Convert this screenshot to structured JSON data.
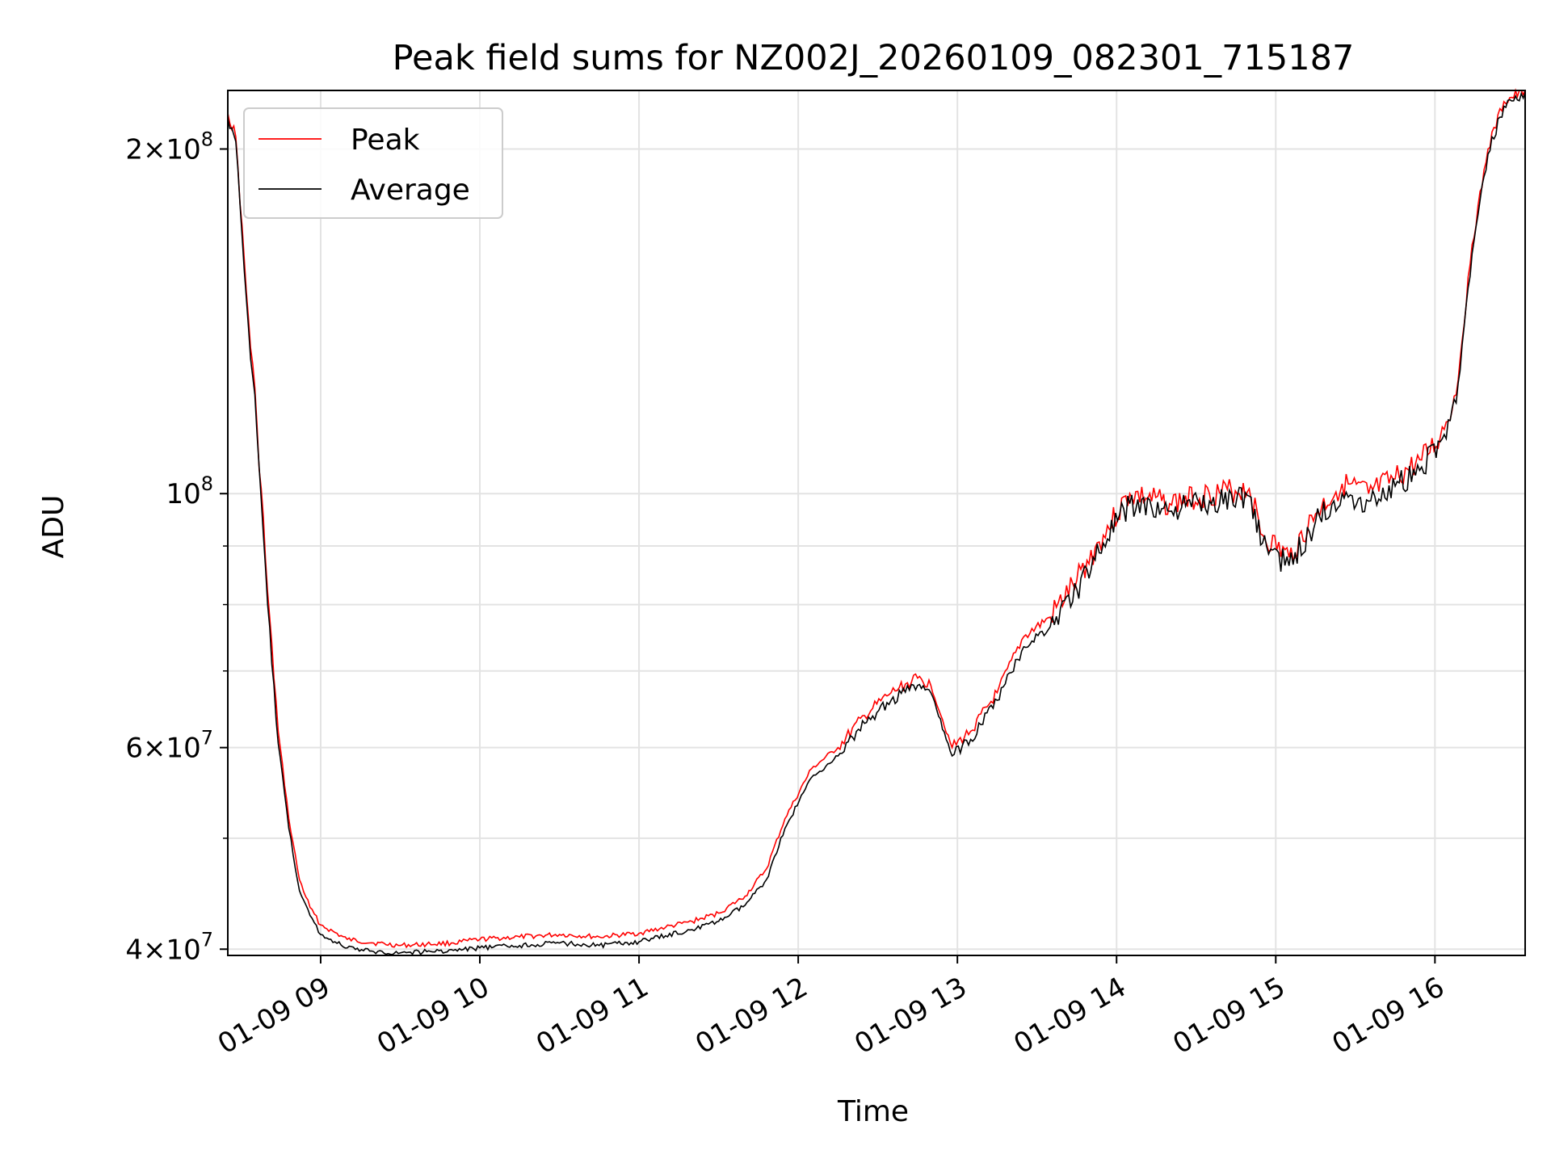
{
  "chart_data": {
    "type": "line",
    "title": "Peak field sums for NZ002J_20260109_082301_715187",
    "xlabel": "Time",
    "ylabel": "ADU",
    "yscale": "log",
    "ylim": [
      39500000,
      225000000
    ],
    "xlim": [
      "01-09 08:25",
      "01-09 16:34"
    ],
    "grid": true,
    "legend_position": "top-left",
    "x_ticks": [
      {
        "t": "01-09 09:00",
        "label": "01-09 09"
      },
      {
        "t": "01-09 10:00",
        "label": "01-09 10"
      },
      {
        "t": "01-09 11:00",
        "label": "01-09 11"
      },
      {
        "t": "01-09 12:00",
        "label": "01-09 12"
      },
      {
        "t": "01-09 13:00",
        "label": "01-09 13"
      },
      {
        "t": "01-09 14:00",
        "label": "01-09 14"
      },
      {
        "t": "01-09 15:00",
        "label": "01-09 15"
      },
      {
        "t": "01-09 16:00",
        "label": "01-09 16"
      }
    ],
    "y_major_ticks": [
      {
        "value": 40000000,
        "mantissa": "4",
        "exponent": "7"
      },
      {
        "value": 60000000,
        "mantissa": "6",
        "exponent": "7"
      },
      {
        "value": 100000000,
        "mantissa": "",
        "exponent": "8",
        "base": "10"
      },
      {
        "value": 200000000,
        "mantissa": "2",
        "exponent": "8"
      }
    ],
    "y_minor_ticks": [
      50000000,
      70000000,
      80000000,
      90000000
    ],
    "series": [
      {
        "name": "Peak",
        "color": "#ff0000",
        "x": [
          "01-09 08:25",
          "01-09 08:28",
          "01-09 08:32",
          "01-09 08:36",
          "01-09 08:40",
          "01-09 08:44",
          "01-09 08:48",
          "01-09 08:52",
          "01-09 08:56",
          "01-09 09:00",
          "01-09 09:10",
          "01-09 09:20",
          "01-09 09:30",
          "01-09 09:40",
          "01-09 09:50",
          "01-09 10:00",
          "01-09 10:15",
          "01-09 10:30",
          "01-09 10:45",
          "01-09 11:00",
          "01-09 11:10",
          "01-09 11:20",
          "01-09 11:30",
          "01-09 11:40",
          "01-09 11:48",
          "01-09 11:55",
          "01-09 12:05",
          "01-09 12:15",
          "01-09 12:25",
          "01-09 12:35",
          "01-09 12:45",
          "01-09 12:50",
          "01-09 12:58",
          "01-09 13:05",
          "01-09 13:15",
          "01-09 13:25",
          "01-09 13:35",
          "01-09 13:45",
          "01-09 13:55",
          "01-09 14:05",
          "01-09 14:20",
          "01-09 14:35",
          "01-09 14:50",
          "01-09 14:55",
          "01-09 15:05",
          "01-09 15:15",
          "01-09 15:25",
          "01-09 15:35",
          "01-09 15:45",
          "01-09 15:55",
          "01-09 16:02",
          "01-09 16:08",
          "01-09 16:14",
          "01-09 16:20",
          "01-09 16:26",
          "01-09 16:34"
        ],
        "values": [
          215000000,
          205000000,
          150000000,
          115000000,
          82000000,
          62000000,
          52000000,
          46000000,
          43500000,
          42000000,
          40800000,
          40500000,
          40300000,
          40400000,
          40500000,
          40800000,
          41000000,
          41200000,
          41000000,
          41300000,
          41800000,
          42300000,
          43000000,
          44500000,
          47000000,
          52000000,
          57500000,
          60000000,
          64000000,
          67000000,
          69000000,
          68000000,
          60000000,
          62000000,
          67000000,
          75000000,
          78000000,
          84000000,
          92000000,
          100000000,
          98000000,
          100000000,
          101000000,
          92000000,
          88000000,
          96000000,
          102000000,
          100000000,
          103000000,
          107000000,
          112000000,
          122000000,
          165000000,
          200000000,
          220000000,
          225000000
        ]
      },
      {
        "name": "Average",
        "color": "#000000",
        "x": [
          "01-09 08:25",
          "01-09 08:28",
          "01-09 08:32",
          "01-09 08:36",
          "01-09 08:40",
          "01-09 08:44",
          "01-09 08:48",
          "01-09 08:52",
          "01-09 08:56",
          "01-09 09:00",
          "01-09 09:10",
          "01-09 09:20",
          "01-09 09:30",
          "01-09 09:40",
          "01-09 09:50",
          "01-09 10:00",
          "01-09 10:15",
          "01-09 10:30",
          "01-09 10:45",
          "01-09 11:00",
          "01-09 11:10",
          "01-09 11:20",
          "01-09 11:30",
          "01-09 11:40",
          "01-09 11:48",
          "01-09 11:55",
          "01-09 12:05",
          "01-09 12:15",
          "01-09 12:25",
          "01-09 12:35",
          "01-09 12:45",
          "01-09 12:50",
          "01-09 12:58",
          "01-09 13:05",
          "01-09 13:15",
          "01-09 13:25",
          "01-09 13:35",
          "01-09 13:45",
          "01-09 13:55",
          "01-09 14:05",
          "01-09 14:20",
          "01-09 14:35",
          "01-09 14:50",
          "01-09 14:55",
          "01-09 15:05",
          "01-09 15:15",
          "01-09 15:25",
          "01-09 15:35",
          "01-09 15:45",
          "01-09 15:55",
          "01-09 16:02",
          "01-09 16:08",
          "01-09 16:14",
          "01-09 16:20",
          "01-09 16:26",
          "01-09 16:34"
        ],
        "values": [
          213000000,
          203000000,
          148000000,
          113000000,
          80000000,
          60500000,
          51000000,
          45000000,
          42800000,
          41200000,
          40100000,
          39800000,
          39700000,
          39800000,
          39900000,
          40100000,
          40300000,
          40500000,
          40300000,
          40600000,
          41100000,
          41600000,
          42300000,
          43700000,
          46000000,
          51000000,
          56500000,
          59000000,
          63000000,
          66000000,
          68000000,
          67000000,
          59000000,
          61000000,
          66000000,
          73500000,
          76500000,
          82500000,
          90500000,
          98000000,
          96500000,
          98500000,
          99500000,
          90500000,
          86500000,
          94500000,
          100000000,
          98500000,
          101500000,
          105500000,
          111000000,
          120000000,
          162000000,
          198000000,
          218000000,
          224000000
        ]
      }
    ]
  }
}
